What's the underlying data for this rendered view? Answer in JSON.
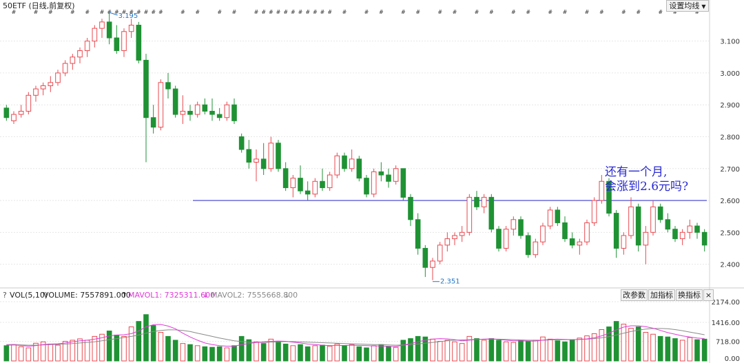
{
  "header": {
    "title": "50ETF (日线,前复权)",
    "settings_button": "设置均线"
  },
  "note": {
    "line1": "还有一个月,",
    "line2": "会涨到2.6元吗?"
  },
  "volume_header": {
    "help": "?",
    "vol_label": "VOL(5,10)",
    "volume": "VOLUME: 7557891.000",
    "mavol1": "MAVOL1: 7325311.600",
    "mavol2": "MAVOL2: 7555668.800",
    "buttons": [
      "改参数",
      "加指标",
      "换指标"
    ]
  },
  "colors": {
    "up": "#e8484f",
    "down": "#1f9234",
    "ma_pink": "#e03ad8",
    "ma_gray": "#8a8a8a",
    "ref_line": "#3a3acd",
    "annot": "#1e74c8"
  },
  "chart_data": [
    {
      "type": "candlestick",
      "name": "price",
      "y_ticks": [
        "3.100",
        "3.000",
        "2.900",
        "2.800",
        "2.700",
        "2.600",
        "2.500",
        "2.400"
      ],
      "ylim": [
        2.33,
        3.19
      ],
      "reference_line": 2.6,
      "annotations": [
        {
          "label": "3.195",
          "kind": "high"
        },
        {
          "label": "2.351",
          "kind": "low"
        }
      ],
      "points": [
        [
          2.89,
          2.9,
          2.85,
          2.86
        ],
        [
          2.85,
          2.88,
          2.84,
          2.87
        ],
        [
          2.87,
          2.9,
          2.86,
          2.88
        ],
        [
          2.88,
          2.94,
          2.87,
          2.93
        ],
        [
          2.93,
          2.96,
          2.91,
          2.95
        ],
        [
          2.95,
          2.97,
          2.93,
          2.96
        ],
        [
          2.96,
          2.99,
          2.94,
          2.97
        ],
        [
          2.97,
          3.01,
          2.96,
          3.0
        ],
        [
          3.0,
          3.04,
          2.99,
          3.03
        ],
        [
          3.03,
          3.06,
          3.01,
          3.05
        ],
        [
          3.05,
          3.08,
          3.03,
          3.07
        ],
        [
          3.07,
          3.11,
          3.05,
          3.1
        ],
        [
          3.1,
          3.15,
          3.08,
          3.14
        ],
        [
          3.14,
          3.17,
          3.11,
          3.16
        ],
        [
          3.16,
          3.19,
          3.09,
          3.11
        ],
        [
          3.11,
          3.15,
          3.06,
          3.07
        ],
        [
          3.07,
          3.14,
          3.05,
          3.13
        ],
        [
          3.13,
          3.17,
          3.11,
          3.15
        ],
        [
          3.15,
          3.16,
          3.03,
          3.04
        ],
        [
          3.04,
          3.06,
          2.72,
          2.86
        ],
        [
          2.86,
          2.9,
          2.81,
          2.83
        ],
        [
          2.83,
          2.98,
          2.82,
          2.97
        ],
        [
          2.97,
          3.0,
          2.92,
          2.95
        ],
        [
          2.95,
          2.96,
          2.86,
          2.87
        ],
        [
          2.87,
          2.93,
          2.84,
          2.88
        ],
        [
          2.88,
          2.9,
          2.85,
          2.87
        ],
        [
          2.87,
          2.91,
          2.86,
          2.9
        ],
        [
          2.9,
          2.92,
          2.87,
          2.88
        ],
        [
          2.88,
          2.92,
          2.85,
          2.87
        ],
        [
          2.87,
          2.89,
          2.85,
          2.86
        ],
        [
          2.86,
          2.91,
          2.85,
          2.9
        ],
        [
          2.9,
          2.92,
          2.84,
          2.85
        ],
        [
          2.8,
          2.81,
          2.75,
          2.76
        ],
        [
          2.76,
          2.79,
          2.7,
          2.72
        ],
        [
          2.72,
          2.76,
          2.66,
          2.73
        ],
        [
          2.73,
          2.78,
          2.68,
          2.7
        ],
        [
          2.7,
          2.8,
          2.69,
          2.78
        ],
        [
          2.78,
          2.79,
          2.69,
          2.7
        ],
        [
          2.7,
          2.72,
          2.63,
          2.64
        ],
        [
          2.64,
          2.68,
          2.61,
          2.67
        ],
        [
          2.67,
          2.71,
          2.62,
          2.63
        ],
        [
          2.63,
          2.66,
          2.6,
          2.62
        ],
        [
          2.62,
          2.67,
          2.61,
          2.66
        ],
        [
          2.66,
          2.7,
          2.63,
          2.64
        ],
        [
          2.64,
          2.69,
          2.63,
          2.68
        ],
        [
          2.68,
          2.75,
          2.67,
          2.74
        ],
        [
          2.74,
          2.75,
          2.69,
          2.7
        ],
        [
          2.7,
          2.76,
          2.69,
          2.73
        ],
        [
          2.73,
          2.74,
          2.66,
          2.67
        ],
        [
          2.67,
          2.68,
          2.61,
          2.62
        ],
        [
          2.62,
          2.7,
          2.61,
          2.69
        ],
        [
          2.69,
          2.72,
          2.66,
          2.68
        ],
        [
          2.68,
          2.7,
          2.64,
          2.66
        ],
        [
          2.66,
          2.71,
          2.65,
          2.7
        ],
        [
          2.7,
          2.7,
          2.6,
          2.61
        ],
        [
          2.61,
          2.62,
          2.52,
          2.54
        ],
        [
          2.54,
          2.56,
          2.43,
          2.45
        ],
        [
          2.45,
          2.46,
          2.36,
          2.39
        ],
        [
          2.39,
          2.42,
          2.35,
          2.41
        ],
        [
          2.41,
          2.47,
          2.4,
          2.46
        ],
        [
          2.46,
          2.5,
          2.44,
          2.48
        ],
        [
          2.48,
          2.5,
          2.46,
          2.49
        ],
        [
          2.49,
          2.52,
          2.47,
          2.5
        ],
        [
          2.5,
          2.62,
          2.49,
          2.61
        ],
        [
          2.61,
          2.63,
          2.57,
          2.58
        ],
        [
          2.58,
          2.62,
          2.56,
          2.61
        ],
        [
          2.61,
          2.62,
          2.5,
          2.51
        ],
        [
          2.51,
          2.52,
          2.44,
          2.45
        ],
        [
          2.45,
          2.52,
          2.44,
          2.51
        ],
        [
          2.51,
          2.55,
          2.49,
          2.54
        ],
        [
          2.54,
          2.55,
          2.48,
          2.49
        ],
        [
          2.49,
          2.5,
          2.42,
          2.43
        ],
        [
          2.43,
          2.48,
          2.42,
          2.47
        ],
        [
          2.47,
          2.53,
          2.46,
          2.52
        ],
        [
          2.52,
          2.58,
          2.51,
          2.57
        ],
        [
          2.57,
          2.58,
          2.52,
          2.53
        ],
        [
          2.53,
          2.55,
          2.47,
          2.48
        ],
        [
          2.48,
          2.5,
          2.45,
          2.46
        ],
        [
          2.46,
          2.48,
          2.43,
          2.47
        ],
        [
          2.47,
          2.54,
          2.46,
          2.53
        ],
        [
          2.53,
          2.61,
          2.52,
          2.6
        ],
        [
          2.6,
          2.68,
          2.59,
          2.66
        ],
        [
          2.66,
          2.67,
          2.55,
          2.56
        ],
        [
          2.56,
          2.57,
          2.42,
          2.45
        ],
        [
          2.45,
          2.5,
          2.43,
          2.49
        ],
        [
          2.49,
          2.61,
          2.48,
          2.58
        ],
        [
          2.58,
          2.59,
          2.44,
          2.46
        ],
        [
          2.46,
          2.52,
          2.4,
          2.5
        ],
        [
          2.5,
          2.6,
          2.49,
          2.58
        ],
        [
          2.58,
          2.59,
          2.53,
          2.54
        ],
        [
          2.54,
          2.56,
          2.5,
          2.51
        ],
        [
          2.51,
          2.52,
          2.47,
          2.48
        ],
        [
          2.48,
          2.51,
          2.46,
          2.5
        ],
        [
          2.5,
          2.54,
          2.48,
          2.52
        ],
        [
          2.52,
          2.53,
          2.48,
          2.5
        ],
        [
          2.5,
          2.51,
          2.44,
          2.46
        ]
      ]
    },
    {
      "type": "bar",
      "name": "volume",
      "y_ticks": [
        "2174.00",
        "1416.00",
        "718.00",
        "0.00"
      ],
      "ylim": [
        0,
        2174
      ],
      "values": [
        560,
        600,
        520,
        480,
        650,
        700,
        620,
        580,
        720,
        760,
        810,
        760,
        900,
        980,
        1100,
        950,
        900,
        1250,
        1450,
        1700,
        1300,
        1050,
        900,
        760,
        640,
        600,
        560,
        520,
        500,
        520,
        480,
        560,
        900,
        780,
        700,
        640,
        800,
        720,
        620,
        560,
        600,
        520,
        560,
        580,
        540,
        620,
        560,
        600,
        520,
        480,
        560,
        600,
        520,
        500,
        760,
        820,
        900,
        880,
        800,
        720,
        760,
        700,
        640,
        900,
        820,
        760,
        820,
        760,
        700,
        680,
        760,
        720,
        760,
        880,
        800,
        740,
        700,
        760,
        840,
        920,
        1000,
        1150,
        1250,
        1450,
        1350,
        1200,
        1250,
        1050,
        980,
        900,
        880,
        820,
        760,
        860,
        780,
        800
      ],
      "ma5": [
        580,
        590,
        570,
        540,
        560,
        600,
        620,
        630,
        660,
        700,
        740,
        760,
        800,
        850,
        920,
        950,
        960,
        1000,
        1100,
        1250,
        1330,
        1340,
        1280,
        1180,
        1020,
        880,
        760,
        660,
        600,
        560,
        540,
        540,
        600,
        640,
        680,
        700,
        720,
        730,
        720,
        690,
        660,
        620,
        600,
        580,
        560,
        570,
        570,
        580,
        570,
        560,
        550,
        550,
        540,
        530,
        580,
        640,
        700,
        760,
        800,
        820,
        810,
        780,
        740,
        760,
        790,
        800,
        810,
        790,
        760,
        740,
        740,
        730,
        730,
        760,
        790,
        800,
        790,
        780,
        790,
        810,
        850,
        920,
        1020,
        1140,
        1240,
        1290,
        1290,
        1260,
        1200,
        1120,
        1040,
        980,
        920,
        880,
        840,
        820
      ],
      "ma10": [
        600,
        600,
        590,
        580,
        580,
        590,
        600,
        610,
        620,
        640,
        660,
        680,
        700,
        740,
        780,
        820,
        860,
        900,
        950,
        1020,
        1080,
        1120,
        1140,
        1140,
        1120,
        1080,
        1020,
        960,
        900,
        840,
        790,
        740,
        710,
        690,
        680,
        680,
        690,
        700,
        710,
        710,
        700,
        690,
        680,
        670,
        660,
        650,
        640,
        630,
        620,
        610,
        600,
        600,
        590,
        580,
        590,
        600,
        620,
        650,
        680,
        710,
        740,
        760,
        770,
        780,
        790,
        800,
        800,
        800,
        790,
        780,
        770,
        760,
        760,
        760,
        770,
        780,
        780,
        780,
        790,
        800,
        820,
        850,
        890,
        950,
        1020,
        1080,
        1130,
        1170,
        1190,
        1190,
        1180,
        1150,
        1110,
        1060,
        1010,
        960
      ]
    }
  ]
}
